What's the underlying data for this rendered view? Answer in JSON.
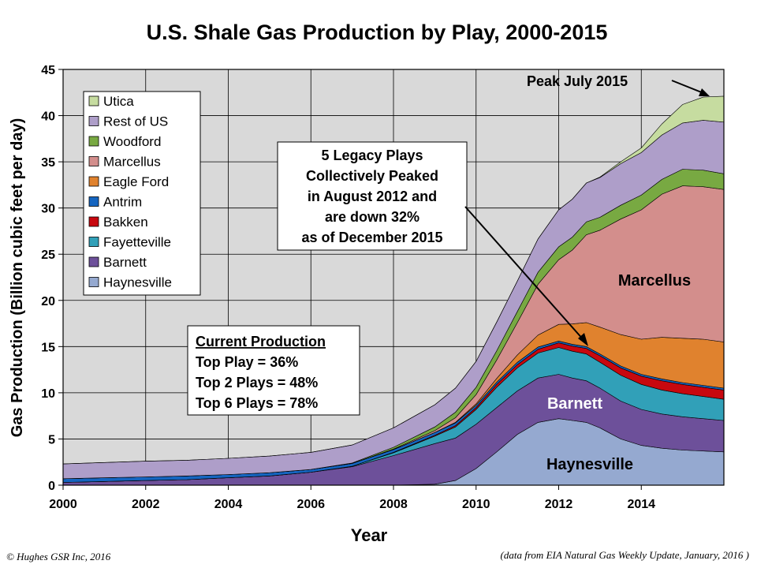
{
  "chart_data": {
    "type": "area",
    "stacked": true,
    "title": "U.S. Shale Gas Production by Play, 2000-2015",
    "xlabel": "Year",
    "ylabel": "Gas Production (Billion cubic feet per day)",
    "xlim": [
      2000,
      2016
    ],
    "ylim": [
      0,
      45
    ],
    "x_ticks": [
      "2000",
      "2002",
      "2004",
      "2006",
      "2008",
      "2010",
      "2012",
      "2014"
    ],
    "y_ticks": [
      "0",
      "5",
      "10",
      "15",
      "20",
      "25",
      "30",
      "35",
      "40",
      "45"
    ],
    "grid": true,
    "legend_position": "top-left",
    "x": [
      2000,
      2001,
      2002,
      2003,
      2004,
      2005,
      2006,
      2007,
      2008,
      2009,
      2009.5,
      2010,
      2010.5,
      2011,
      2011.5,
      2012,
      2012.33,
      2012.67,
      2013,
      2013.5,
      2014,
      2014.5,
      2015,
      2015.5,
      2016
    ],
    "series": [
      {
        "name": "Haynesville",
        "color": "#95a9d0",
        "values": [
          0,
          0,
          0,
          0,
          0,
          0,
          0,
          0,
          0,
          0.1,
          0.5,
          1.8,
          3.6,
          5.5,
          6.8,
          7.2,
          7.0,
          6.8,
          6.2,
          5.0,
          4.3,
          4.0,
          3.8,
          3.7,
          3.6
        ]
      },
      {
        "name": "Barnett",
        "color": "#6d509a",
        "values": [
          0.3,
          0.4,
          0.5,
          0.6,
          0.8,
          1.0,
          1.4,
          2.0,
          3.2,
          4.4,
          4.6,
          4.8,
          4.8,
          4.7,
          4.8,
          4.8,
          4.6,
          4.5,
          4.3,
          4.1,
          3.9,
          3.7,
          3.6,
          3.5,
          3.4
        ]
      },
      {
        "name": "Fayetteville",
        "color": "#31a0b8",
        "values": [
          0,
          0,
          0,
          0,
          0,
          0,
          0,
          0.05,
          0.3,
          0.8,
          1.2,
          1.6,
          2.2,
          2.5,
          2.7,
          2.9,
          2.9,
          2.9,
          2.8,
          2.8,
          2.7,
          2.6,
          2.5,
          2.4,
          2.3
        ]
      },
      {
        "name": "Bakken",
        "color": "#c8080f",
        "values": [
          0,
          0,
          0,
          0,
          0,
          0,
          0,
          0,
          0.05,
          0.1,
          0.15,
          0.2,
          0.3,
          0.35,
          0.4,
          0.5,
          0.55,
          0.6,
          0.7,
          0.8,
          0.9,
          1.0,
          1.0,
          1.0,
          1.0
        ]
      },
      {
        "name": "Antrim",
        "color": "#1565c0",
        "values": [
          0.4,
          0.4,
          0.4,
          0.4,
          0.35,
          0.35,
          0.3,
          0.3,
          0.3,
          0.3,
          0.3,
          0.25,
          0.25,
          0.25,
          0.25,
          0.2,
          0.2,
          0.2,
          0.2,
          0.2,
          0.2,
          0.2,
          0.2,
          0.2,
          0.2
        ]
      },
      {
        "name": "Eagle Ford",
        "color": "#e0822e",
        "values": [
          0,
          0,
          0,
          0,
          0,
          0,
          0,
          0,
          0,
          0,
          0.05,
          0.15,
          0.4,
          0.8,
          1.3,
          1.8,
          2.2,
          2.6,
          2.9,
          3.4,
          3.8,
          4.5,
          4.8,
          5.0,
          5.0
        ]
      },
      {
        "name": "Marcellus",
        "color": "#d38e8c",
        "values": [
          0,
          0,
          0,
          0,
          0,
          0,
          0,
          0,
          0.05,
          0.2,
          0.5,
          1.0,
          2.0,
          3.5,
          5.5,
          7.0,
          8.0,
          9.5,
          10.5,
          12.5,
          14.0,
          15.5,
          16.5,
          16.5,
          16.5
        ]
      },
      {
        "name": "Woodford",
        "color": "#78a942",
        "values": [
          0,
          0,
          0,
          0,
          0,
          0,
          0,
          0.05,
          0.2,
          0.4,
          0.6,
          0.8,
          1.0,
          1.2,
          1.3,
          1.4,
          1.4,
          1.4,
          1.4,
          1.5,
          1.6,
          1.6,
          1.8,
          1.8,
          1.7
        ]
      },
      {
        "name": "Rest of US",
        "color": "#ae9ec9",
        "values": [
          1.6,
          1.65,
          1.7,
          1.7,
          1.75,
          1.8,
          1.85,
          1.95,
          2.1,
          2.4,
          2.6,
          2.8,
          3.1,
          3.3,
          3.6,
          4.0,
          4.1,
          4.2,
          4.3,
          4.5,
          4.6,
          4.8,
          5.0,
          5.4,
          5.6
        ]
      },
      {
        "name": "Utica",
        "color": "#c6dca0",
        "values": [
          0,
          0,
          0,
          0,
          0,
          0,
          0,
          0,
          0,
          0,
          0,
          0,
          0,
          0,
          0,
          0,
          0,
          0,
          0.05,
          0.2,
          0.5,
          1.2,
          2.0,
          2.5,
          2.8
        ]
      }
    ],
    "annotations": {
      "peak": "Peak July 2015",
      "legacy": [
        "5 Legacy Plays",
        "Collectively  Peaked",
        "in August 2012 and",
        "are down 32%",
        "as of December 2015"
      ],
      "current_title": "Current Production",
      "current_lines": [
        "Top Play = 36%",
        "Top 2 Plays = 48%",
        "Top 6 Plays = 78%"
      ],
      "label_marcellus": "Marcellus",
      "label_barnett": "Barnett",
      "label_haynesville": "Haynesville"
    }
  },
  "footer": {
    "copyright": "©  Hughes GSR Inc, 2016",
    "source": "(data from EIA Natural Gas Weekly Update, January, 2016 )"
  }
}
